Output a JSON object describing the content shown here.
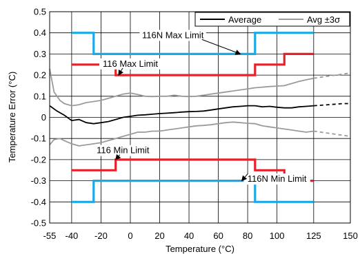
{
  "chart_data": {
    "type": "line",
    "xlabel": "Temperature (°C)",
    "ylabel": "Temperature Error (°C)",
    "xlim": [
      -55,
      150
    ],
    "ylim": [
      -0.5,
      0.5
    ],
    "x_ticks": [
      -55,
      -40,
      -20,
      0,
      20,
      40,
      60,
      80,
      100,
      125,
      150
    ],
    "x_tick_labels": [
      "-55",
      "-40",
      "-20",
      "0",
      "20",
      "40",
      "60",
      "80",
      "100",
      "125",
      "150"
    ],
    "y_ticks": [
      0.5,
      0.4,
      0.3,
      0.2,
      0.1,
      0,
      -0.1,
      -0.2,
      -0.3,
      -0.4,
      -0.5
    ],
    "y_tick_labels": [
      "0.5",
      "0.4",
      "0.3",
      "0.2",
      "0.1",
      "0",
      "-0.1",
      "-0.2",
      "-0.3",
      "-0.4",
      "-0.5"
    ],
    "grid": true,
    "legend": {
      "placement": "top-right",
      "entries": [
        {
          "label": "Average",
          "color": "#000000"
        },
        {
          "label": "Avg ±3σ",
          "color": "#9a9a9a"
        }
      ]
    },
    "colors": {
      "average": "#000000",
      "sigma": "#9a9a9a",
      "limit_116": "#e8202a",
      "limit_116n": "#1aa9e6"
    },
    "series": [
      {
        "name": "Average",
        "x": [
          -55,
          -50,
          -45,
          -40,
          -35,
          -30,
          -25,
          -20,
          -15,
          -10,
          -5,
          0,
          5,
          10,
          15,
          20,
          25,
          30,
          35,
          40,
          45,
          50,
          55,
          60,
          65,
          70,
          75,
          80,
          85,
          90,
          95,
          100,
          105,
          110,
          115,
          120,
          125
        ],
        "y": [
          0.055,
          0.03,
          0.01,
          -0.015,
          -0.01,
          -0.025,
          -0.03,
          -0.025,
          -0.02,
          -0.01,
          0.0,
          0.005,
          0.01,
          0.012,
          0.015,
          0.018,
          0.02,
          0.022,
          0.025,
          0.027,
          0.028,
          0.03,
          0.035,
          0.04,
          0.045,
          0.05,
          0.052,
          0.055,
          0.055,
          0.05,
          0.052,
          0.048,
          0.045,
          0.045,
          0.05,
          0.052,
          0.055
        ]
      },
      {
        "name": "Average (extrapolated)",
        "line": "dashed",
        "x": [
          125,
          135,
          145,
          150
        ],
        "y": [
          0.055,
          0.06,
          0.065,
          0.065
        ]
      },
      {
        "name": "Avg +3σ",
        "x": [
          -55,
          -52,
          -48,
          -45,
          -40,
          -35,
          -30,
          -25,
          -20,
          -15,
          -10,
          -5,
          0,
          5,
          10,
          15,
          20,
          25,
          30,
          35,
          40,
          45,
          50,
          55,
          60,
          65,
          70,
          75,
          80,
          85,
          90,
          95,
          100,
          105,
          110,
          115,
          120,
          125
        ],
        "y": [
          0.23,
          0.12,
          0.08,
          0.065,
          0.055,
          0.06,
          0.07,
          0.075,
          0.08,
          0.09,
          0.1,
          0.11,
          0.115,
          0.108,
          0.1,
          0.098,
          0.1,
          0.1,
          0.105,
          0.1,
          0.098,
          0.1,
          0.105,
          0.11,
          0.115,
          0.12,
          0.125,
          0.13,
          0.135,
          0.14,
          0.143,
          0.146,
          0.148,
          0.15,
          0.16,
          0.17,
          0.178,
          0.185
        ]
      },
      {
        "name": "Avg +3σ (extrapolated)",
        "line": "dashed",
        "x": [
          125,
          135,
          145,
          150
        ],
        "y": [
          0.185,
          0.195,
          0.205,
          0.21
        ]
      },
      {
        "name": "Avg -3σ",
        "x": [
          -55,
          -52,
          -48,
          -45,
          -40,
          -35,
          -30,
          -25,
          -20,
          -15,
          -10,
          -5,
          0,
          5,
          10,
          15,
          20,
          25,
          30,
          35,
          40,
          45,
          50,
          55,
          60,
          65,
          70,
          75,
          80,
          85,
          90,
          95,
          100,
          105,
          110,
          115,
          120,
          125
        ],
        "y": [
          -0.13,
          -0.105,
          -0.1,
          -0.11,
          -0.125,
          -0.135,
          -0.13,
          -0.125,
          -0.12,
          -0.11,
          -0.1,
          -0.09,
          -0.08,
          -0.07,
          -0.07,
          -0.065,
          -0.065,
          -0.06,
          -0.055,
          -0.05,
          -0.045,
          -0.04,
          -0.038,
          -0.035,
          -0.03,
          -0.025,
          -0.022,
          -0.025,
          -0.028,
          -0.03,
          -0.04,
          -0.045,
          -0.05,
          -0.055,
          -0.06,
          -0.065,
          -0.07,
          -0.065
        ]
      },
      {
        "name": "Avg -3σ (extrapolated)",
        "line": "dashed",
        "x": [
          125,
          135,
          145,
          150
        ],
        "y": [
          -0.065,
          -0.075,
          -0.085,
          -0.09
        ]
      },
      {
        "name": "116N Max Limit",
        "step": true,
        "x": [
          -40,
          -25,
          -25,
          85,
          85,
          125
        ],
        "y": [
          0.4,
          0.4,
          0.3,
          0.3,
          0.4,
          0.4
        ]
      },
      {
        "name": "116 Max Limit",
        "step": true,
        "x": [
          -40,
          -10,
          -10,
          85,
          85,
          105,
          105,
          125
        ],
        "y": [
          0.25,
          0.25,
          0.2,
          0.2,
          0.25,
          0.25,
          0.3,
          0.3
        ]
      },
      {
        "name": "116 Min Limit",
        "step": true,
        "x": [
          -40,
          -10,
          -10,
          85,
          85,
          105,
          105,
          125
        ],
        "y": [
          -0.25,
          -0.25,
          -0.2,
          -0.2,
          -0.25,
          -0.25,
          -0.3,
          -0.3
        ]
      },
      {
        "name": "116N Min Limit",
        "step": true,
        "x": [
          -40,
          -25,
          -25,
          85,
          85,
          125
        ],
        "y": [
          -0.4,
          -0.4,
          -0.3,
          -0.3,
          -0.4,
          -0.4
        ]
      }
    ],
    "annotations": [
      {
        "text": "116N Max Limit",
        "x": 29,
        "y": 0.375,
        "arrow_to": [
          75,
          0.3
        ]
      },
      {
        "text": "116 Max Limit",
        "x": 0,
        "y": 0.24,
        "arrow_to": [
          -8,
          0.2
        ]
      },
      {
        "text": "116 Min Limit",
        "x": -5,
        "y": -0.17,
        "arrow_to": [
          -10,
          -0.2
        ]
      },
      {
        "text": "116N Min Limit",
        "x": 100,
        "y": -0.305,
        "arrow_to": [
          76,
          -0.3
        ]
      }
    ]
  }
}
